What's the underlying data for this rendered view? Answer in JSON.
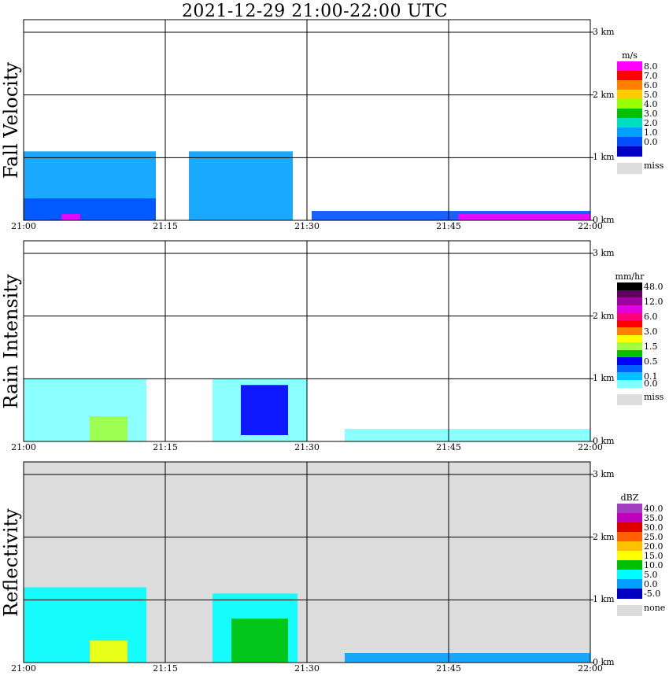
{
  "title": "2021-12-29   21:00-22:00 UTC",
  "x_ticks": [
    "21:00",
    "21:15",
    "21:30",
    "21:45",
    "22:00"
  ],
  "y_ticks": [
    "0 km",
    "1 km",
    "2 km",
    "3 km"
  ],
  "colors": {
    "missing_bg": "#dcdcdc",
    "grid": "#000000"
  },
  "panels": [
    {
      "id": "fall-velocity",
      "label": "Fall Velocity",
      "unit": "m/s",
      "legend": [
        {
          "label": "8.0",
          "color": "#ff00ff"
        },
        {
          "label": "7.0",
          "color": "#ff0000"
        },
        {
          "label": "6.0",
          "color": "#ff8000"
        },
        {
          "label": "5.0",
          "color": "#ffcc00"
        },
        {
          "label": "4.0",
          "color": "#99ff00"
        },
        {
          "label": "3.0",
          "color": "#00c000"
        },
        {
          "label": "2.0",
          "color": "#00e0c0"
        },
        {
          "label": "1.0",
          "color": "#00a0ff"
        },
        {
          "label": "0.0",
          "color": "#0050ff"
        },
        {
          "label": "",
          "color": "#0000c0"
        }
      ],
      "missing_label": "miss"
    },
    {
      "id": "rain-intensity",
      "label": "Rain Intensity",
      "unit": "mm/hr",
      "legend": [
        {
          "label": "48.0",
          "color": "#000000"
        },
        {
          "label": "",
          "color": "#600060"
        },
        {
          "label": "12.0",
          "color": "#a000a0"
        },
        {
          "label": "",
          "color": "#e000e0"
        },
        {
          "label": "6.0",
          "color": "#ff0080"
        },
        {
          "label": "",
          "color": "#ff0000"
        },
        {
          "label": "3.0",
          "color": "#ff8000"
        },
        {
          "label": "",
          "color": "#ffff00"
        },
        {
          "label": "1.5",
          "color": "#a0ff40"
        },
        {
          "label": "",
          "color": "#00c000"
        },
        {
          "label": "0.5",
          "color": "#0000ff"
        },
        {
          "label": "",
          "color": "#0060ff"
        },
        {
          "label": "0.1",
          "color": "#00c0ff"
        },
        {
          "label": "0.0",
          "color": "#80ffff"
        }
      ],
      "missing_label": "miss"
    },
    {
      "id": "reflectivity",
      "label": "Reflectivity",
      "unit": "dBZ",
      "legend": [
        {
          "label": "40.0",
          "color": "#a040c0"
        },
        {
          "label": "35.0",
          "color": "#c000c0"
        },
        {
          "label": "30.0",
          "color": "#e00000"
        },
        {
          "label": "25.0",
          "color": "#ff6000"
        },
        {
          "label": "20.0",
          "color": "#ffc000"
        },
        {
          "label": "15.0",
          "color": "#ffff00"
        },
        {
          "label": "10.0",
          "color": "#00c000"
        },
        {
          "label": "5.0",
          "color": "#00ffff"
        },
        {
          "label": "0.0",
          "color": "#00a0ff"
        },
        {
          "label": "-5.0",
          "color": "#0000c0"
        }
      ],
      "missing_label": "none"
    }
  ],
  "chart_data": [
    {
      "type": "heatmap",
      "title": "2021-12-29   21:00-22:00 UTC",
      "ylabel": "Fall Velocity",
      "x_range": [
        "21:00",
        "22:00"
      ],
      "y_range_km": [
        0,
        3.0
      ],
      "cells": [
        {
          "t0": 0.0,
          "t1": 14.0,
          "h0": 0.0,
          "h1": 1.1,
          "level": "1.0-2.0"
        },
        {
          "t0": 0.0,
          "t1": 14.0,
          "h0": 0.0,
          "h1": 0.35,
          "level": "0.0-1.0"
        },
        {
          "t0": 17.5,
          "t1": 28.5,
          "h0": 0.0,
          "h1": 1.1,
          "level": "1.0-2.0"
        },
        {
          "t0": 30.5,
          "t1": 60.0,
          "h0": 0.0,
          "h1": 0.15,
          "level": "0.0-1.0"
        },
        {
          "t0": 4.0,
          "t1": 6.0,
          "h0": 0.0,
          "h1": 0.1,
          "level": "8.0"
        },
        {
          "t0": 46.0,
          "t1": 60.0,
          "h0": 0.0,
          "h1": 0.1,
          "level": "8.0"
        }
      ]
    },
    {
      "type": "heatmap",
      "title": "2021-12-29   21:00-22:00 UTC",
      "ylabel": "Rain Intensity",
      "x_range": [
        "21:00",
        "22:00"
      ],
      "y_range_km": [
        0,
        3.0
      ],
      "cells": [
        {
          "t0": 0.0,
          "t1": 13.0,
          "h0": 0.0,
          "h1": 1.0,
          "level": "0.0-0.1"
        },
        {
          "t0": 7.0,
          "t1": 11.0,
          "h0": 0.0,
          "h1": 0.4,
          "level": "1.5-3.0"
        },
        {
          "t0": 20.0,
          "t1": 30.0,
          "h0": 0.0,
          "h1": 1.0,
          "level": "0.0-0.1"
        },
        {
          "t0": 23.0,
          "t1": 28.0,
          "h0": 0.1,
          "h1": 0.9,
          "level": "0.5-1.5"
        },
        {
          "t0": 34.0,
          "t1": 60.0,
          "h0": 0.0,
          "h1": 0.2,
          "level": "0.0-0.1"
        }
      ]
    },
    {
      "type": "heatmap",
      "title": "2021-12-29   21:00-22:00 UTC",
      "ylabel": "Reflectivity",
      "x_range": [
        "21:00",
        "22:00"
      ],
      "y_range_km": [
        0,
        3.0
      ],
      "cells": [
        {
          "t0": 0.0,
          "t1": 13.0,
          "h0": 0.0,
          "h1": 1.2,
          "level": "5.0-10.0"
        },
        {
          "t0": 7.0,
          "t1": 11.0,
          "h0": 0.0,
          "h1": 0.35,
          "level": "15.0-20.0"
        },
        {
          "t0": 20.0,
          "t1": 29.0,
          "h0": 0.0,
          "h1": 1.1,
          "level": "5.0-10.0"
        },
        {
          "t0": 22.0,
          "t1": 28.0,
          "h0": 0.0,
          "h1": 0.7,
          "level": "10.0-15.0"
        },
        {
          "t0": 34.0,
          "t1": 60.0,
          "h0": 0.0,
          "h1": 0.15,
          "level": "-5.0-0.0"
        }
      ]
    }
  ]
}
